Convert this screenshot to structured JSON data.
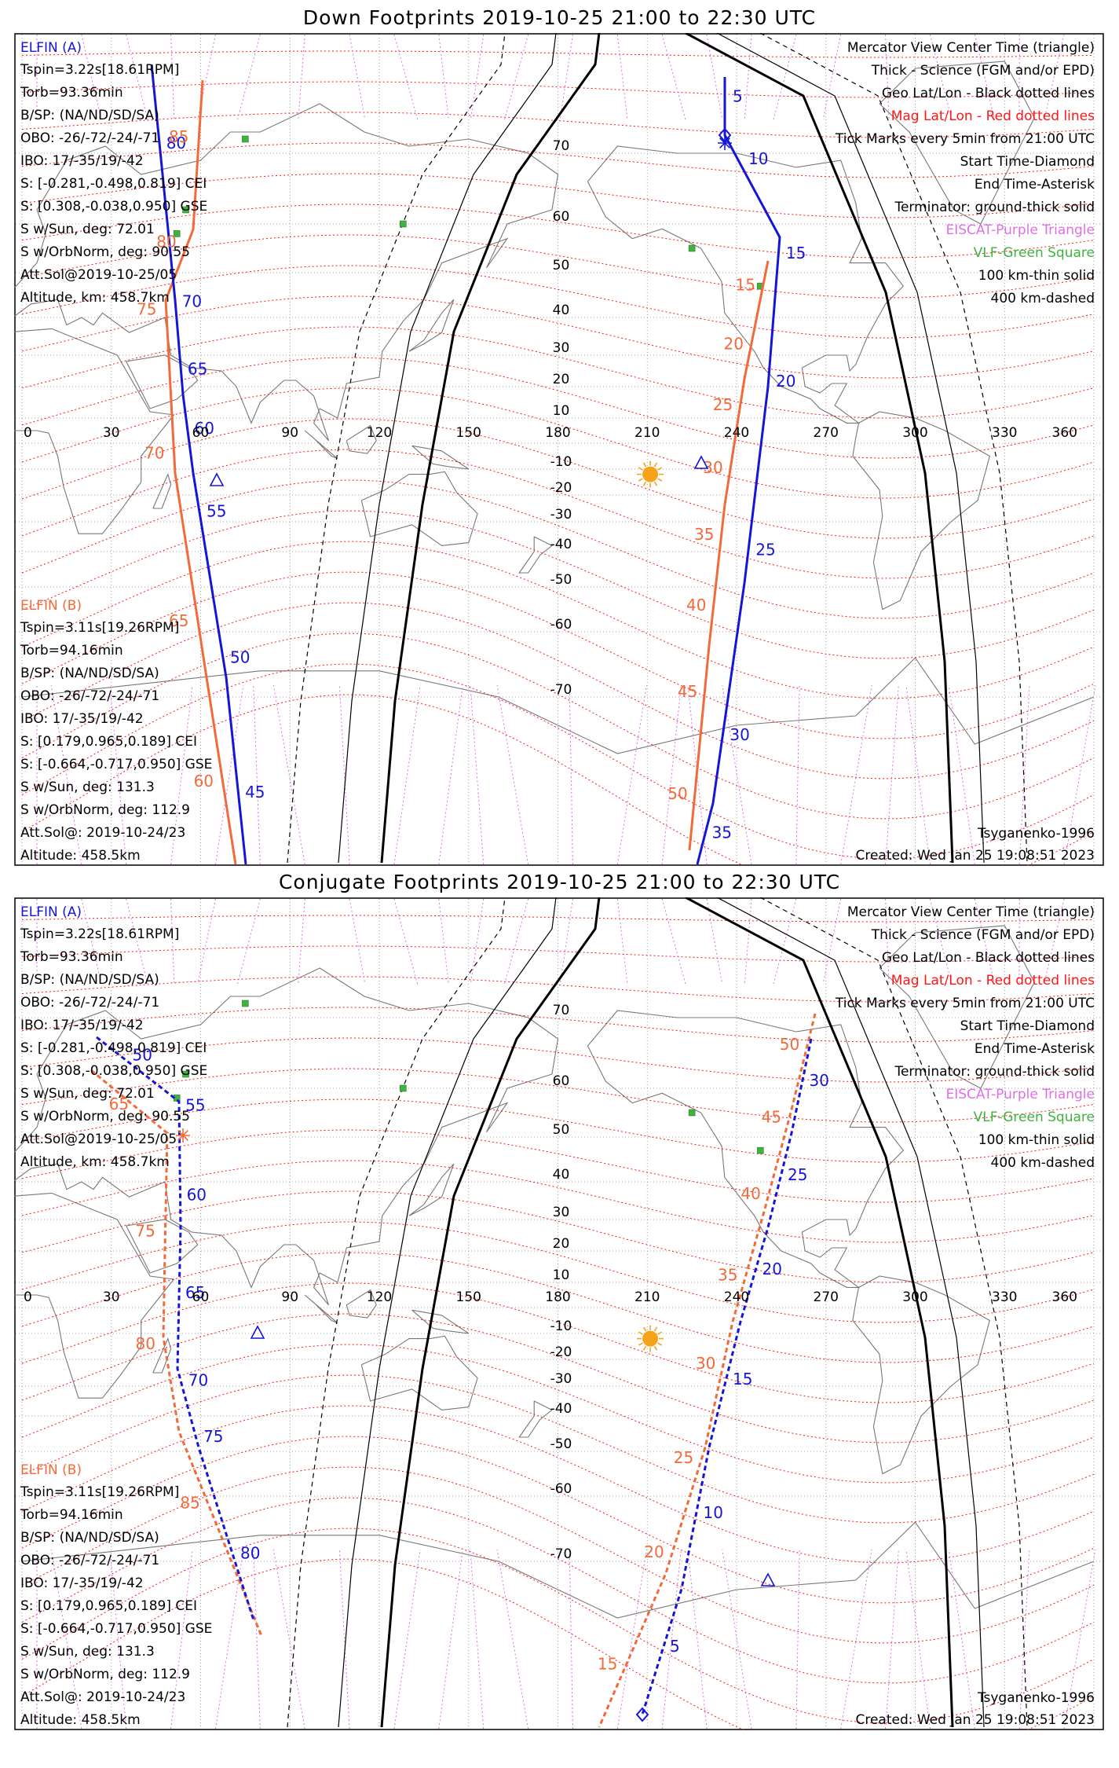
{
  "panels": [
    {
      "id": "down",
      "title": "Down Footprints 2019-10-25 21:00 to 22:30 UTC",
      "elfin_a": {
        "header": "ELFIN (A)",
        "lines": [
          "Tspin=3.22s[18.61RPM]",
          "Torb=93.36min",
          "B/SP: (NA/ND/SD/SA)",
          "OBO: -26/-72/-24/-71",
          "IBO: 17/-35/19/-42",
          "S: [-0.281,-0.498,0.819] CEI",
          "S: [0.308,-0.038,0.950] GSE",
          "S w/Sun, deg: 72.01",
          "S w/OrbNorm, deg: 90.55",
          "Att.Sol@2019-10-25/05",
          "Altitude, km: 458.7km"
        ]
      },
      "elfin_b": {
        "header": "ELFIN (B)",
        "lines": [
          "Tspin=3.11s[19.26RPM]",
          "Torb=94.16min",
          "B/SP: (NA/ND/SD/SA)",
          "OBO: -26/-72/-24/-71",
          "IBO: 17/-35/19/-42",
          "S: [0.179,0.965,0.189] CEI",
          "S: [-0.664,-0.717,0.950] GSE",
          "S w/Sun, deg: 131.3",
          "S w/OrbNorm, deg: 112.9",
          "Att.Sol@: 2019-10-24/23",
          "Altitude: 458.5km"
        ]
      },
      "footer_model": "Tsyganenko-1996",
      "footer_created": "Created: Wed Jan 25 19:08:51 2023",
      "track_labels": {
        "west_blue": [
          "80",
          "70",
          "65",
          "60",
          "55",
          "50",
          "45"
        ],
        "west_orange": [
          "85",
          "80",
          "75",
          "70",
          "65",
          "60"
        ],
        "east_blue": [
          "5",
          "10",
          "15",
          "20",
          "25",
          "30",
          "35"
        ],
        "east_orange": [
          "15",
          "20",
          "25",
          "30",
          "35",
          "40",
          "45",
          "50"
        ]
      }
    },
    {
      "id": "conj",
      "title": "Conjugate Footprints 2019-10-25 21:00 to 22:30 UTC",
      "elfin_a": {
        "header": "ELFIN (A)",
        "lines": [
          "Tspin=3.22s[18.61RPM]",
          "Torb=93.36min",
          "B/SP: (NA/ND/SD/SA)",
          "OBO: -26/-72/-24/-71",
          "IBO: 17/-35/19/-42",
          "S: [-0.281,-0.498,0.819] CEI",
          "S: [0.308,-0.038,0.950] GSE",
          "S w/Sun, deg: 72.01",
          "S w/OrbNorm, deg: 90.55",
          "Att.Sol@2019-10-25/05",
          "Altitude, km: 458.7km"
        ]
      },
      "elfin_b": {
        "header": "ELFIN (B)",
        "lines": [
          "Tspin=3.11s[19.26RPM]",
          "Torb=94.16min",
          "B/SP: (NA/ND/SD/SA)",
          "OBO: -26/-72/-24/-71",
          "IBO: 17/-35/19/-42",
          "S: [0.179,0.965,0.189] CEI",
          "S: [-0.664,-0.717,0.950] GSE",
          "S w/Sun, deg: 131.3",
          "S w/OrbNorm, deg: 112.9",
          "Att.Sol@: 2019-10-24/23",
          "Altitude: 458.5km"
        ]
      },
      "footer_model": "Tsyganenko-1996",
      "footer_created": "Created: Wed Jan 25 19:08:51 2023",
      "track_labels": {
        "west_blue": [
          "50",
          "55",
          "60",
          "65",
          "70",
          "75",
          "80"
        ],
        "west_orange": [
          "65",
          "75",
          "80",
          "85"
        ],
        "east_blue": [
          "30",
          "25",
          "20",
          "15",
          "10",
          "5"
        ],
        "east_orange": [
          "50",
          "45",
          "40",
          "35",
          "30",
          "25",
          "20",
          "15"
        ]
      }
    }
  ],
  "legend": {
    "lines": [
      "Mercator View Center Time (triangle)",
      "Thick - Science (FGM and/or EPD)",
      "Geo Lat/Lon - Black dotted lines",
      "Mag Lat/Lon - Red dotted lines",
      "Tick Marks every 5min from 21:00 UTC",
      "Start Time-Diamond",
      "End Time-Asterisk",
      "Terminator: ground-thick solid",
      "EISCAT-Purple Triangle",
      "VLF-Green Square",
      "100 km-thin solid",
      "400 km-dashed"
    ],
    "colors": [
      "#000000",
      "#000000",
      "#000000",
      "#ff1515",
      "#000000",
      "#000000",
      "#000000",
      "#000000",
      "#e06fe6",
      "#3fb23f",
      "#000000",
      "#000000"
    ]
  },
  "axes": {
    "lon_ticks": [
      "0",
      "30",
      "60",
      "90",
      "120",
      "150",
      "180",
      "210",
      "240",
      "270",
      "300",
      "330",
      "360"
    ],
    "lat_ticks": [
      "70",
      "60",
      "50",
      "40",
      "30",
      "20",
      "10",
      "-10",
      "-20",
      "-30",
      "-40",
      "-50",
      "-60",
      "-70"
    ]
  },
  "colors": {
    "elfin_a": "#1515d6",
    "elfin_b": "#f26a3a",
    "mag_grid": "#ff1515",
    "mag_meridian": "#e06fe6",
    "geo_grid": "#888888",
    "coast": "#777777",
    "sun": "#f7a21b"
  }
}
